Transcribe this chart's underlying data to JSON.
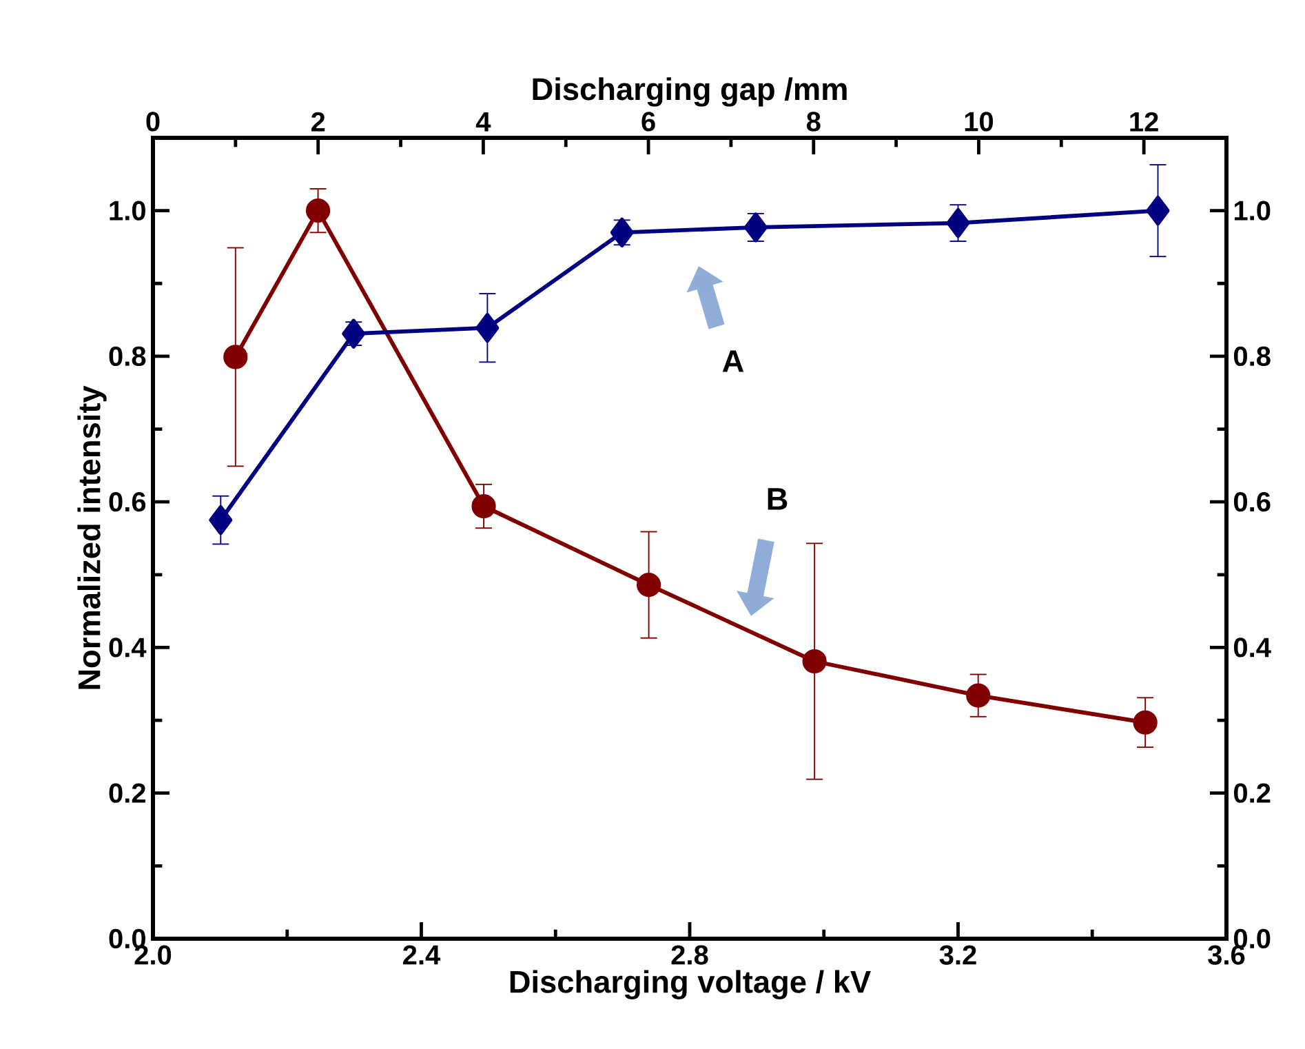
{
  "chart_data": {
    "type": "line",
    "xlabel": "Discharging voltage / kV",
    "x2label": "Discharging gap /mm",
    "ylabel": "Normalized intensity",
    "xlim": [
      2.0,
      3.6
    ],
    "xticks": [
      {
        "value": 2.0,
        "label": "2.0"
      },
      2.4,
      2.8,
      3.2,
      3.6
    ],
    "x2lim": [
      0,
      13
    ],
    "x2ticks": [
      0,
      2,
      4,
      6,
      8,
      10,
      12
    ],
    "ylim": [
      0,
      1.1
    ],
    "yticks": [
      {
        "value": 0,
        "label": "0.0"
      },
      0.2,
      0.4,
      0.6,
      0.8,
      {
        "value": 1.0,
        "label": "1.0"
      }
    ],
    "y2lim": [
      0,
      1.1
    ],
    "y2ticks": [
      {
        "value": 0,
        "label": "0.0"
      },
      0.2,
      0.4,
      0.6,
      0.8,
      {
        "value": 1.0,
        "label": "1.0"
      }
    ],
    "grid": false,
    "legend": false,
    "line_style": "solid",
    "annotations": [
      "A",
      "B"
    ],
    "series": [
      {
        "color": "#000080",
        "marker": "diamond",
        "axis": "x2",
        "x": [
          0.82,
          2.43,
          4.05,
          5.68,
          7.3,
          9.75,
          12.17
        ],
        "values": [
          0.575,
          0.831,
          0.839,
          0.97,
          0.977,
          0.983,
          1.0
        ],
        "errors": [
          0.033,
          0.016,
          0.047,
          0.017,
          0.019,
          0.025,
          0.063
        ]
      },
      {
        "color": "#800000",
        "marker": "circle",
        "x": [
          2.123,
          2.246,
          2.493,
          2.739,
          2.986,
          3.23,
          3.479
        ],
        "values": [
          0.799,
          1.0,
          0.594,
          0.486,
          0.381,
          0.334,
          0.297
        ],
        "errors": [
          0.15,
          0.03,
          0.03,
          0.073,
          0.162,
          0.029,
          0.034
        ]
      }
    ]
  }
}
